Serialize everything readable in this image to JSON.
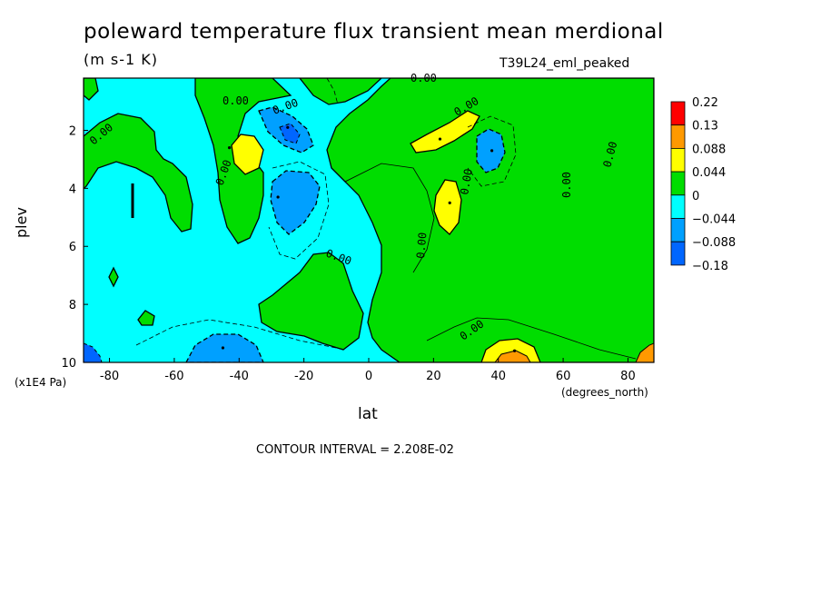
{
  "chart_data": {
    "type": "heatmap",
    "title": "poleward temperature flux transient mean merdional",
    "units": "(m s-1 K)",
    "run_label": "T39L24_eml_peaked",
    "xlabel": "lat",
    "ylabel": "plev",
    "x_unit_label": "(degrees_north)",
    "y_unit_label": "(x1E4 Pa)",
    "contour_interval_text": "CONTOUR INTERVAL = 2.208E-02",
    "xlim": [
      -88,
      88
    ],
    "ylim": [
      10,
      0.2
    ],
    "x_ticks": [
      -80,
      -60,
      -40,
      -20,
      0,
      20,
      40,
      60,
      80
    ],
    "y_ticks": [
      2,
      4,
      6,
      8,
      10
    ],
    "legend": {
      "position": "right",
      "labels": [
        "0.22",
        "0.13",
        "0.088",
        "0.044",
        "0",
        "−0.044",
        "−0.088",
        "−0.18"
      ],
      "colors": [
        "#ff0000",
        "#ff9900",
        "#ffff00",
        "#00dd00",
        "#00ffff",
        "#00a0ff",
        "#0066ff"
      ],
      "boundaries": [
        0.22,
        0.13,
        0.088,
        0.044,
        0,
        -0.044,
        -0.088,
        -0.18
      ]
    },
    "contour_labels": [
      "0.00",
      "0.00",
      "0.00",
      "0.00",
      "0.00",
      "0.00",
      "0.00",
      "0.00",
      "0.00",
      "0.00",
      "0.00",
      "0.00"
    ],
    "features": [
      {
        "lat": -43,
        "plev": 2.6,
        "value": 0.06
      },
      {
        "lat": -25,
        "plev": 1.9,
        "value": -0.09
      },
      {
        "lat": -28,
        "plev": 4.3,
        "value": -0.06
      },
      {
        "lat": 22,
        "plev": 2.3,
        "value": 0.07
      },
      {
        "lat": 25,
        "plev": 4.5,
        "value": 0.06
      },
      {
        "lat": 38,
        "plev": 2.7,
        "value": -0.06
      },
      {
        "lat": 45,
        "plev": 9.6,
        "value": 0.07
      },
      {
        "lat": -45,
        "plev": 9.5,
        "value": -0.07
      }
    ]
  }
}
